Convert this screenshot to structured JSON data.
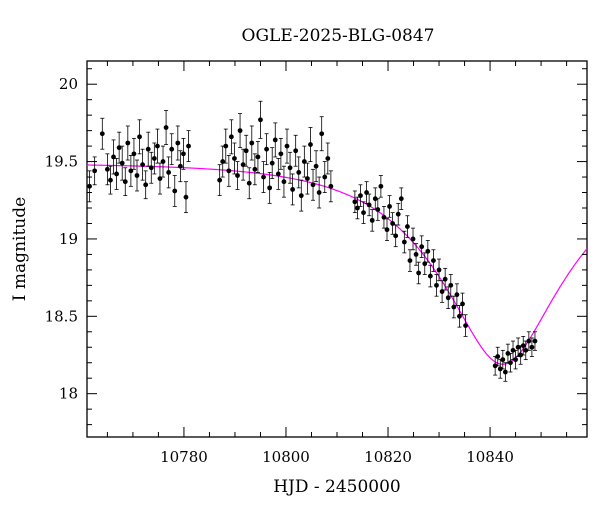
{
  "chart_data": {
    "type": "scatter",
    "title": "OGLE-2025-BLG-0847",
    "xlabel": "HJD - 2450000",
    "ylabel": "I magnitude",
    "xlim": [
      10761,
      10859
    ],
    "ylim": [
      20.15,
      17.72
    ],
    "y_inverted": true,
    "xticks": [
      10780,
      10800,
      10820,
      10840
    ],
    "yticks": [
      18,
      18.5,
      19,
      19.5,
      20
    ],
    "ytick_labels": [
      "18",
      "18.5",
      "19",
      "19.5",
      "20"
    ],
    "grid": false,
    "legend": "none",
    "colors": {
      "data_points": "#000000",
      "model_curve": "#ff00ff"
    },
    "model_curve": {
      "description": "magenta microlensing model fit",
      "peak_hjd": 10842.5,
      "peak_mag": 18.19,
      "baseline_mag": 19.49,
      "einstein_time_days": 22,
      "impact_parameter": 0.4
    },
    "series": [
      {
        "marker": "filled-circle-with-errorbars",
        "points": [
          [
            10761.5,
            19.34,
            0.1
          ],
          [
            10762.5,
            19.44,
            0.09
          ],
          [
            10764.0,
            19.68,
            0.1
          ],
          [
            10765.0,
            19.45,
            0.1
          ],
          [
            10765.6,
            19.38,
            0.09
          ],
          [
            10766.2,
            19.53,
            0.11
          ],
          [
            10766.8,
            19.42,
            0.1
          ],
          [
            10767.3,
            19.59,
            0.1
          ],
          [
            10767.9,
            19.49,
            0.11
          ],
          [
            10768.5,
            19.37,
            0.09
          ],
          [
            10769.0,
            19.62,
            0.11
          ],
          [
            10769.6,
            19.44,
            0.1
          ],
          [
            10770.2,
            19.55,
            0.1
          ],
          [
            10770.8,
            19.41,
            0.1
          ],
          [
            10771.3,
            19.66,
            0.11
          ],
          [
            10771.9,
            19.48,
            0.1
          ],
          [
            10772.5,
            19.35,
            0.09
          ],
          [
            10773.0,
            19.58,
            0.11
          ],
          [
            10773.6,
            19.46,
            0.1
          ],
          [
            10774.2,
            19.52,
            0.1
          ],
          [
            10774.8,
            19.6,
            0.11
          ],
          [
            10775.3,
            19.39,
            0.1
          ],
          [
            10775.9,
            19.5,
            0.1
          ],
          [
            10776.5,
            19.72,
            0.11
          ],
          [
            10777.0,
            19.43,
            0.1
          ],
          [
            10777.6,
            19.58,
            0.1
          ],
          [
            10778.2,
            19.31,
            0.1
          ],
          [
            10778.8,
            19.62,
            0.11
          ],
          [
            10779.3,
            19.47,
            0.1
          ],
          [
            10779.9,
            19.55,
            0.1
          ],
          [
            10780.4,
            19.27,
            0.1
          ],
          [
            10780.9,
            19.6,
            0.1
          ],
          [
            10787.0,
            19.38,
            0.1
          ],
          [
            10787.6,
            19.5,
            0.1
          ],
          [
            10788.2,
            19.6,
            0.11
          ],
          [
            10788.8,
            19.44,
            0.1
          ],
          [
            10789.3,
            19.66,
            0.11
          ],
          [
            10789.9,
            19.52,
            0.1
          ],
          [
            10790.5,
            19.41,
            0.09
          ],
          [
            10791.0,
            19.7,
            0.11
          ],
          [
            10791.6,
            19.48,
            0.1
          ],
          [
            10792.2,
            19.57,
            0.1
          ],
          [
            10792.8,
            19.36,
            0.1
          ],
          [
            10793.3,
            19.62,
            0.11
          ],
          [
            10793.9,
            19.45,
            0.1
          ],
          [
            10794.5,
            19.53,
            0.1
          ],
          [
            10795.0,
            19.77,
            0.12
          ],
          [
            10795.6,
            19.4,
            0.1
          ],
          [
            10796.2,
            19.58,
            0.1
          ],
          [
            10796.8,
            19.33,
            0.1
          ],
          [
            10797.3,
            19.49,
            0.1
          ],
          [
            10797.9,
            19.64,
            0.11
          ],
          [
            10798.5,
            19.42,
            0.1
          ],
          [
            10799.0,
            19.55,
            0.1
          ],
          [
            10799.6,
            19.37,
            0.1
          ],
          [
            10800.2,
            19.6,
            0.11
          ],
          [
            10800.8,
            19.46,
            0.1
          ],
          [
            10801.3,
            19.32,
            0.1
          ],
          [
            10801.9,
            19.57,
            0.1
          ],
          [
            10802.5,
            19.43,
            0.1
          ],
          [
            10803.0,
            19.28,
            0.1
          ],
          [
            10803.6,
            19.5,
            0.1
          ],
          [
            10804.2,
            19.39,
            0.1
          ],
          [
            10804.8,
            19.61,
            0.11
          ],
          [
            10805.3,
            19.35,
            0.1
          ],
          [
            10805.9,
            19.47,
            0.1
          ],
          [
            10806.5,
            19.3,
            0.1
          ],
          [
            10807.0,
            19.68,
            0.11
          ],
          [
            10807.6,
            19.4,
            0.1
          ],
          [
            10808.2,
            19.52,
            0.1
          ],
          [
            10808.8,
            19.34,
            0.1
          ],
          [
            10813.5,
            19.24,
            0.07
          ],
          [
            10814.0,
            19.2,
            0.07
          ],
          [
            10814.6,
            19.28,
            0.07
          ],
          [
            10815.2,
            19.17,
            0.07
          ],
          [
            10815.8,
            19.3,
            0.07
          ],
          [
            10816.3,
            19.22,
            0.07
          ],
          [
            10816.9,
            19.12,
            0.07
          ],
          [
            10817.5,
            19.26,
            0.07
          ],
          [
            10818.0,
            19.19,
            0.07
          ],
          [
            10818.6,
            19.34,
            0.07
          ],
          [
            10819.2,
            19.14,
            0.07
          ],
          [
            10819.8,
            19.06,
            0.07
          ],
          [
            10820.3,
            19.21,
            0.07
          ],
          [
            10820.9,
            19.1,
            0.07
          ],
          [
            10821.5,
            19.02,
            0.07
          ],
          [
            10822.0,
            19.16,
            0.07
          ],
          [
            10822.6,
            19.26,
            0.07
          ],
          [
            10823.2,
            18.98,
            0.07
          ],
          [
            10823.8,
            19.08,
            0.07
          ],
          [
            10824.3,
            18.86,
            0.07
          ],
          [
            10824.9,
            19.0,
            0.07
          ],
          [
            10825.5,
            18.9,
            0.07
          ],
          [
            10826.0,
            18.78,
            0.07
          ],
          [
            10826.6,
            18.95,
            0.07
          ],
          [
            10827.2,
            18.84,
            0.07
          ],
          [
            10827.8,
            18.92,
            0.07
          ],
          [
            10828.3,
            18.76,
            0.07
          ],
          [
            10828.9,
            18.86,
            0.07
          ],
          [
            10829.5,
            18.7,
            0.07
          ],
          [
            10830.0,
            18.8,
            0.07
          ],
          [
            10830.6,
            18.66,
            0.07
          ],
          [
            10831.2,
            18.74,
            0.07
          ],
          [
            10831.8,
            18.62,
            0.07
          ],
          [
            10832.3,
            18.7,
            0.07
          ],
          [
            10832.9,
            18.56,
            0.07
          ],
          [
            10833.5,
            18.64,
            0.07
          ],
          [
            10834.0,
            18.5,
            0.07
          ],
          [
            10834.6,
            18.58,
            0.07
          ],
          [
            10835.2,
            18.44,
            0.07
          ],
          [
            10841.0,
            18.18,
            0.06
          ],
          [
            10841.5,
            18.24,
            0.06
          ],
          [
            10842.0,
            18.16,
            0.06
          ],
          [
            10842.5,
            18.22,
            0.06
          ],
          [
            10843.0,
            18.14,
            0.06
          ],
          [
            10843.5,
            18.26,
            0.06
          ],
          [
            10844.0,
            18.2,
            0.06
          ],
          [
            10844.5,
            18.28,
            0.06
          ],
          [
            10845.0,
            18.22,
            0.06
          ],
          [
            10845.5,
            18.3,
            0.06
          ],
          [
            10846.0,
            18.25,
            0.06
          ],
          [
            10846.5,
            18.31,
            0.06
          ],
          [
            10847.0,
            18.28,
            0.06
          ],
          [
            10847.6,
            18.34,
            0.06
          ],
          [
            10848.2,
            18.3,
            0.06
          ],
          [
            10848.8,
            18.34,
            0.06
          ]
        ]
      }
    ]
  }
}
